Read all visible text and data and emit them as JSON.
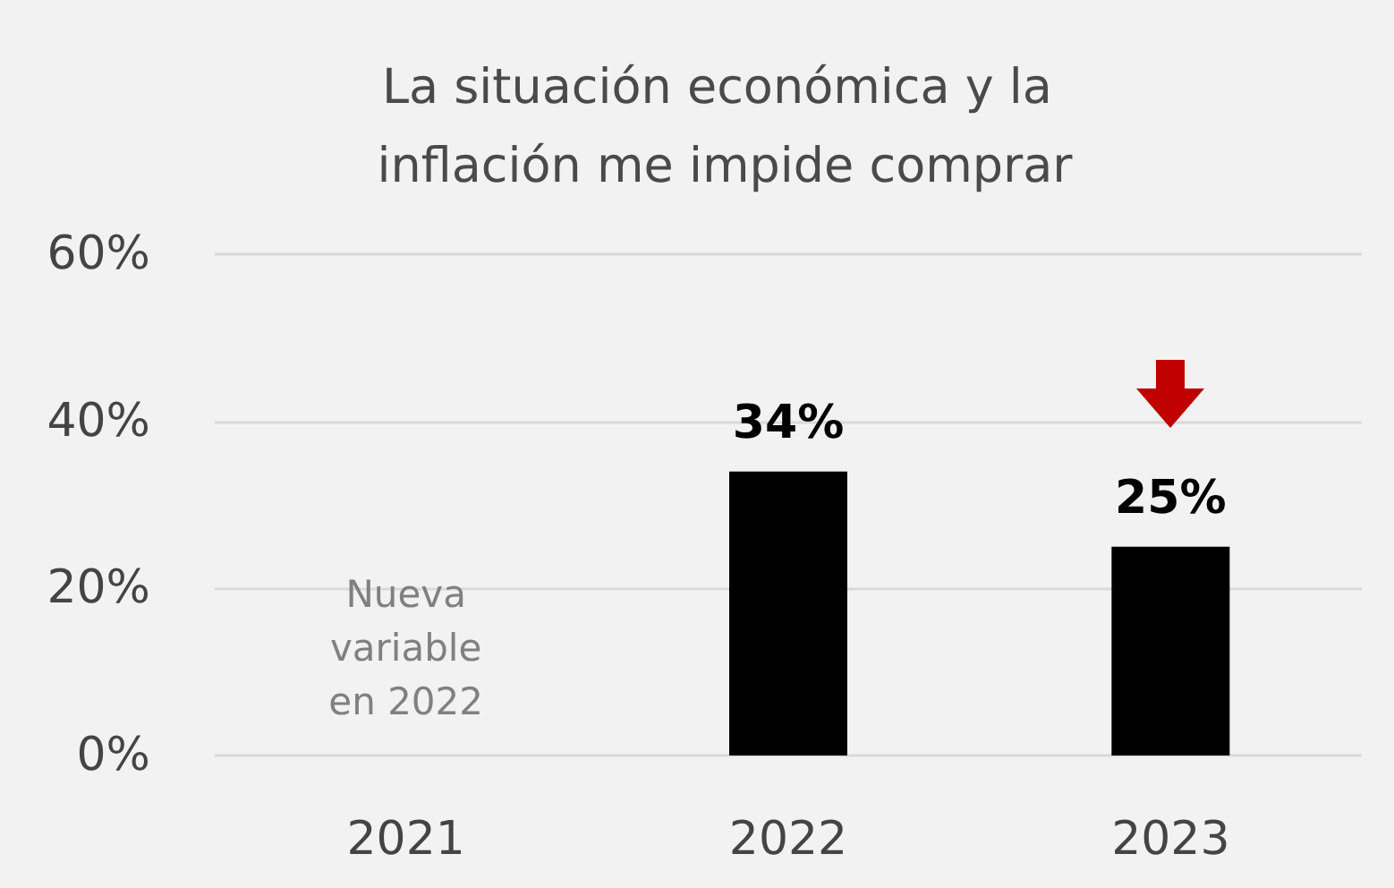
{
  "chart_data": {
    "type": "bar",
    "title": "La situación económica y la inflación me impide comprar",
    "categories": [
      "2021",
      "2022",
      "2023"
    ],
    "values": [
      null,
      34,
      25
    ],
    "color": "#000000",
    "value_labels": [
      null,
      "34%",
      "25%"
    ],
    "ylim": [
      0,
      60
    ],
    "yticks": [
      {
        "value": 0,
        "label": "0%"
      },
      {
        "value": 20,
        "label": "20%"
      },
      {
        "value": 40,
        "label": "40%"
      },
      {
        "value": 60,
        "label": "60%"
      }
    ],
    "grid": "y",
    "annotations": [
      "Nueva\nvariable\nen 2022"
    ]
  }
}
